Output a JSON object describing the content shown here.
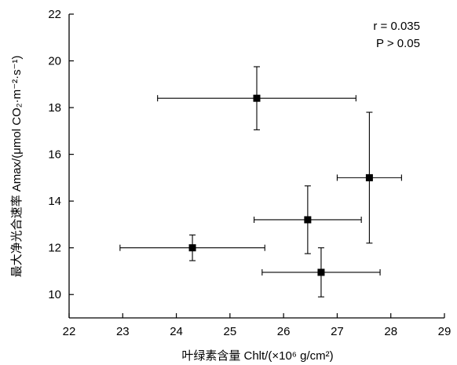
{
  "chart_data": {
    "type": "scatter",
    "xlabel": "叶绿素含量 Chlt/(×10⁶ g/cm²)",
    "ylabel": "最大净光合速率 Amax/(μmol CO₂·m⁻²·s⁻¹)",
    "xlim": [
      22,
      29
    ],
    "ylim": [
      9,
      22
    ],
    "x_ticks": [
      22,
      23,
      24,
      25,
      26,
      27,
      28,
      29
    ],
    "y_ticks": [
      10,
      12,
      14,
      16,
      18,
      20,
      22
    ],
    "grid": false,
    "legend": "none",
    "annotations": [
      "r = 0.035",
      "P > 0.05"
    ],
    "points": [
      {
        "x": 24.3,
        "y": 12.0,
        "x_err": [
          1.35,
          1.35
        ],
        "y_err": [
          0.55,
          0.55
        ]
      },
      {
        "x": 25.5,
        "y": 18.4,
        "x_err": [
          1.85,
          1.85
        ],
        "y_err": [
          1.35,
          1.35
        ]
      },
      {
        "x": 26.45,
        "y": 13.2,
        "x_err": [
          1.0,
          1.0
        ],
        "y_err": [
          1.45,
          1.45
        ]
      },
      {
        "x": 26.7,
        "y": 10.95,
        "x_err": [
          1.1,
          1.1
        ],
        "y_err": [
          1.05,
          1.05
        ]
      },
      {
        "x": 27.6,
        "y": 15.0,
        "x_err": [
          0.6,
          0.6
        ],
        "y_err": [
          2.8,
          2.8
        ]
      }
    ],
    "marker": "filled-square",
    "marker_color": "#000000"
  }
}
